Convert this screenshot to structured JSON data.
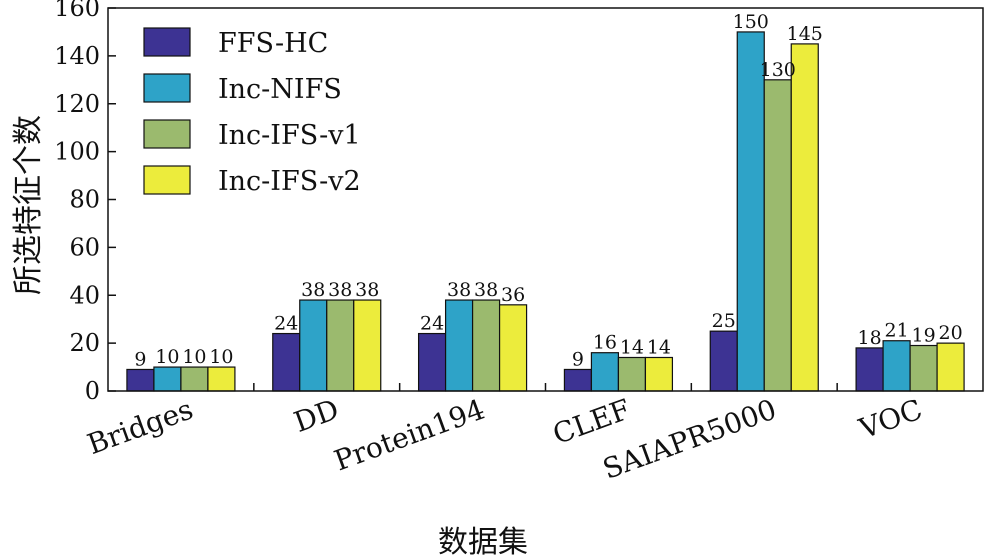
{
  "chart_data": {
    "type": "bar",
    "title": "",
    "xlabel": "数据集",
    "ylabel": "所选特征个数",
    "ylim": [
      0,
      160
    ],
    "yticks": [
      0,
      20,
      40,
      60,
      80,
      100,
      120,
      140,
      160
    ],
    "grid": false,
    "legend_position": "top-left",
    "categories": [
      "Bridges",
      "DD",
      "Protein194",
      "CLEF",
      "SAIAPR5000",
      "VOC"
    ],
    "series": [
      {
        "name": "FFS-HC",
        "color": "#3d3393",
        "values": [
          9,
          24,
          24,
          9,
          25,
          18
        ]
      },
      {
        "name": "Inc-NIFS",
        "color": "#2ea3c8",
        "values": [
          10,
          38,
          38,
          16,
          150,
          21
        ]
      },
      {
        "name": "Inc-IFS-v1",
        "color": "#9bba6e",
        "values": [
          10,
          38,
          38,
          14,
          130,
          19
        ]
      },
      {
        "name": "Inc-IFS-v2",
        "color": "#ecec3c",
        "values": [
          10,
          38,
          36,
          14,
          145,
          20
        ]
      }
    ]
  }
}
